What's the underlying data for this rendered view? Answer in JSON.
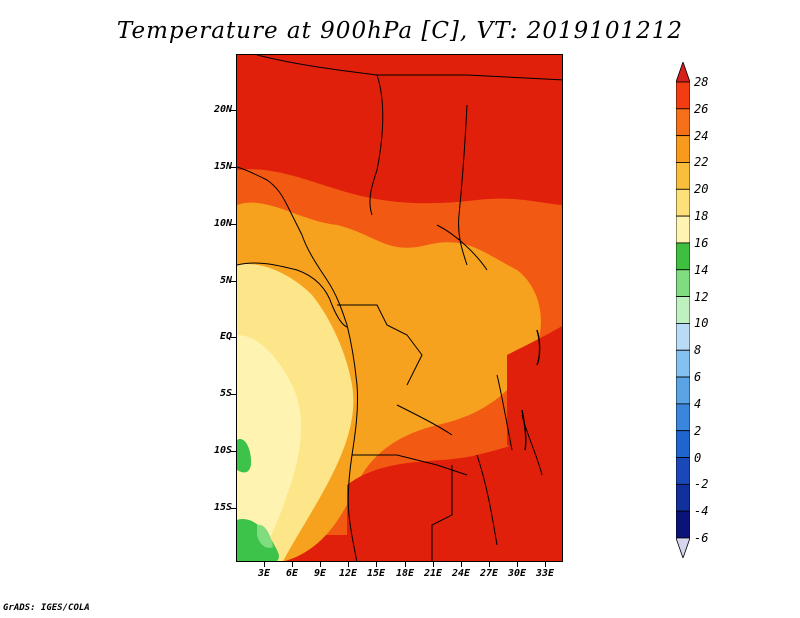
{
  "title": "Temperature at 900hPa [C], VT: 2019101212",
  "footer": "GrADS: IGES/COLA",
  "map": {
    "variable": "Temperature",
    "level": "900hPa",
    "units": "C",
    "valid_time": "2019101212",
    "lon_range": [
      0,
      35
    ],
    "lat_range": [
      -20,
      24
    ],
    "colors": {
      "hot": "#e0200a",
      "warm": "#f25a14",
      "orange": "#f6a21e",
      "yellow": "#fde68a",
      "green": "#3ec34a",
      "coast": "#000000"
    }
  },
  "axes": {
    "lat_labels": [
      "20N",
      "15N",
      "10N",
      "5N",
      "EQ",
      "5S",
      "10S",
      "15S"
    ],
    "lon_labels": [
      "3E",
      "6E",
      "9E",
      "12E",
      "15E",
      "18E",
      "21E",
      "24E",
      "27E",
      "30E",
      "33E"
    ]
  },
  "colorbar": {
    "labels": [
      "28",
      "26",
      "24",
      "22",
      "20",
      "18",
      "16",
      "14",
      "12",
      "10",
      "8",
      "6",
      "4",
      "2",
      "0",
      "-2",
      "-4",
      "-6"
    ],
    "colors": [
      "#d8201a",
      "#f23c12",
      "#f6701a",
      "#f89a1e",
      "#fabe3c",
      "#fde07a",
      "#fef3b0",
      "#3fbf3f",
      "#7fdc7f",
      "#bff0bf",
      "#b8dcf6",
      "#86c0ee",
      "#5aa4e6",
      "#3a86dc",
      "#2064d0",
      "#1a48b8",
      "#12309c",
      "#0a1478",
      "#d6d6ee"
    ]
  }
}
